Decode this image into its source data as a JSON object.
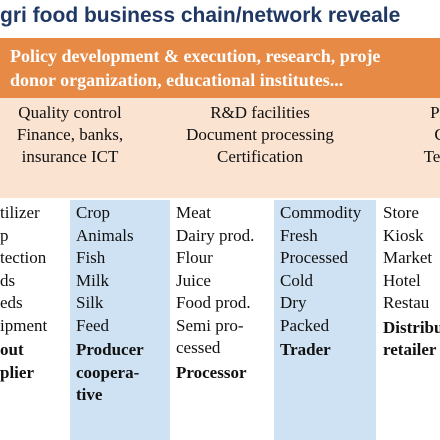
{
  "title": "gri food business chain/network reveale",
  "policy_band": {
    "lines": [
      "Policy  development & execution, research, proje",
      "donor organization, educational institutes..."
    ]
  },
  "support": [
    {
      "lines": [
        "Quality control",
        "Finance, banks,",
        "insurance ICT"
      ]
    },
    {
      "lines": [
        "R&D facilities",
        "Document processing",
        "Certification"
      ]
    },
    {
      "lines": [
        "Pri",
        "C",
        "Tech"
      ]
    }
  ],
  "chain": [
    {
      "items": [
        "tilizer",
        "p",
        "tection",
        "ds",
        "eds",
        "ipment"
      ],
      "role": [
        "out",
        "plier"
      ]
    },
    {
      "items": [
        "Crop",
        "Animals",
        "Fish",
        "Milk",
        "Silk",
        "Feed"
      ],
      "role": [
        "Producer",
        "coopera-",
        "tive"
      ]
    },
    {
      "items": [
        "Meat",
        "Dairy prod.",
        "Flour",
        "Juice",
        "Food prod.",
        "Semi pro-",
        "cessed"
      ],
      "role": [
        "Processor"
      ]
    },
    {
      "items": [
        "Commodity",
        "Fresh",
        "Processed",
        "Cold",
        "Dry",
        "Packed"
      ],
      "role": [
        "Trader"
      ]
    },
    {
      "items": [
        "Store",
        "Kiosk",
        "Market",
        "Hotel",
        "Restau"
      ],
      "role": [
        "Distribu",
        "retailer"
      ]
    }
  ]
}
